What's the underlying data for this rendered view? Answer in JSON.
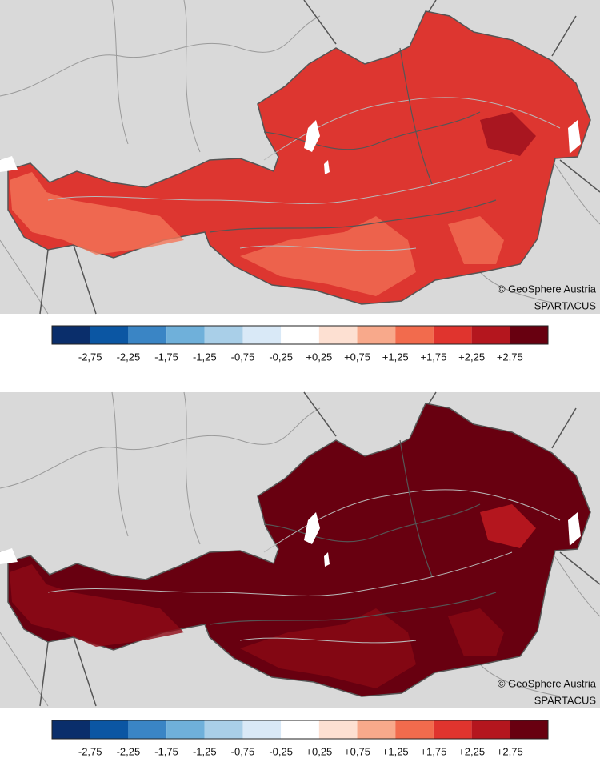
{
  "maps": [
    {
      "credit": "© GeoSphere Austria",
      "source": "SPARTACUS",
      "fill": "#dd3630",
      "patch": "#f47559",
      "hot": "#a91620",
      "legend": {
        "colors": [
          "#0a2e6b",
          "#0b56a3",
          "#3a85c5",
          "#6fb0da",
          "#a9cfe8",
          "#d9e9f7",
          "#ffffff",
          "#fde0d2",
          "#f8a98b",
          "#f26b4d",
          "#e0342e",
          "#b4161e",
          "#680010"
        ],
        "labels": [
          "-2,75",
          "-2,25",
          "-1,75",
          "-1,25",
          "-0,75",
          "-0,25",
          "+0,25",
          "+0,75",
          "+1,25",
          "+1,75",
          "+2,25",
          "+2,75"
        ]
      }
    },
    {
      "credit": "© GeoSphere Austria",
      "source": "SPARTACUS",
      "fill": "#680010",
      "patch": "#8e0a16",
      "hot": "#b4161e",
      "legend": {
        "colors": [
          "#0a2e6b",
          "#0b56a3",
          "#3a85c5",
          "#6fb0da",
          "#a9cfe8",
          "#d9e9f7",
          "#ffffff",
          "#fde0d2",
          "#f8a98b",
          "#f26b4d",
          "#e0342e",
          "#b4161e",
          "#680010"
        ],
        "labels": [
          "-2,75",
          "-2,25",
          "-1,75",
          "-1,25",
          "-0,75",
          "-0,25",
          "+0,25",
          "+0,75",
          "+1,25",
          "+1,75",
          "+2,25",
          "+2,75"
        ]
      }
    }
  ]
}
